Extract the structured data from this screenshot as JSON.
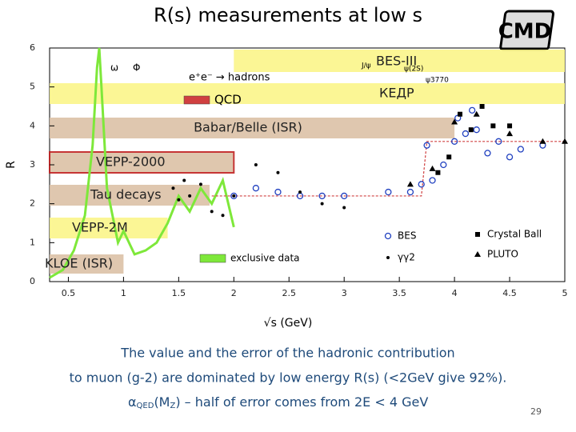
{
  "slide": {
    "title": "R(s) measurements at low s",
    "text_lines": [
      "The value and the error of the hadronic contribution",
      "to muon (g-2) are dominated by low energy R(s) (<2GeV give 92%)."
    ],
    "formula_line": [
      "α",
      "QED",
      "(M",
      "Z",
      ") – half of error comes from 2E < 4 GeV"
    ],
    "page_number": "29",
    "logo": "CMD"
  },
  "chart_data": {
    "type": "scatter",
    "xlabel": "√s   (GeV)",
    "ylabel": "R",
    "xlim": [
      0.33,
      5.0
    ],
    "ylim": [
      0,
      6
    ],
    "xticks": [
      0.5,
      1,
      1.5,
      2,
      2.5,
      3,
      3.5,
      4,
      4.5,
      5
    ],
    "yticks": [
      0,
      1,
      2,
      3,
      4,
      5,
      6
    ],
    "bands": [
      {
        "label": "BES-III",
        "x": [
          2.0,
          5.0
        ],
        "color": "#fbf58a"
      },
      {
        "label": "КЕДР",
        "x": [
          0.33,
          5.0
        ],
        "color": "#fbf58a"
      },
      {
        "label": "Babar/Belle (ISR)",
        "x": [
          0.33,
          4.0
        ],
        "color": "#dcc1a6"
      },
      {
        "label": "VEPP-2000",
        "x": [
          0.33,
          2.0
        ],
        "color": "#dcc1a6"
      },
      {
        "label": "Tau decays",
        "x": [
          0.33,
          1.78
        ],
        "color": "#dcc1a6"
      },
      {
        "label": "VEPP-2M",
        "x": [
          0.33,
          1.4
        ],
        "color": "#fbf58a"
      },
      {
        "label": "KLOE (ISR)",
        "x": [
          0.33,
          1.0
        ],
        "color": "#dcc1a6"
      }
    ],
    "annotations": [
      "ω",
      "Φ",
      "e⁺e⁻ → hadrons",
      "J/ψ",
      "ψ(2S)",
      "ψ3770"
    ],
    "series": [
      {
        "name": "exclusive data",
        "color": "#7ee83a",
        "marker": "line",
        "x": [
          0.33,
          0.45,
          0.55,
          0.65,
          0.72,
          0.76,
          0.78,
          0.8,
          0.85,
          0.95,
          1.0,
          1.1,
          1.2,
          1.3,
          1.4,
          1.5,
          1.6,
          1.7,
          1.8,
          1.9,
          2.0
        ],
        "values": [
          0.1,
          0.3,
          0.8,
          1.7,
          3.5,
          5.5,
          6.0,
          5.0,
          2.4,
          1.0,
          1.3,
          0.7,
          0.8,
          1.0,
          1.5,
          2.2,
          1.8,
          2.4,
          2.0,
          2.6,
          1.4
        ]
      },
      {
        "name": "QCD",
        "color": "#d04040",
        "marker": "dashed",
        "x": [
          1.8,
          3.7,
          3.75,
          5.0
        ],
        "values": [
          2.2,
          2.2,
          3.6,
          3.6
        ]
      },
      {
        "name": "BES",
        "color": "#2040c0",
        "marker": "circle",
        "x": [
          2.0,
          2.2,
          2.4,
          2.6,
          2.8,
          3.0,
          3.4,
          3.6,
          3.7,
          3.75,
          3.8,
          3.9,
          4.0,
          4.03,
          4.1,
          4.16,
          4.2,
          4.3,
          4.4,
          4.5,
          4.6,
          4.8
        ],
        "values": [
          2.2,
          2.4,
          2.3,
          2.2,
          2.2,
          2.2,
          2.3,
          2.3,
          2.5,
          3.5,
          2.6,
          3.0,
          3.6,
          4.2,
          3.8,
          4.4,
          3.9,
          3.3,
          3.6,
          3.2,
          3.4,
          3.5
        ]
      },
      {
        "name": "Crystal Ball",
        "color": "#000000",
        "marker": "square",
        "x": [
          3.85,
          3.95,
          4.05,
          4.15,
          4.25,
          4.35,
          4.5
        ],
        "values": [
          2.8,
          3.2,
          4.3,
          3.9,
          4.5,
          4.0,
          4.0
        ]
      },
      {
        "name": "γγ2",
        "color": "#000000",
        "marker": "dot",
        "x": [
          1.45,
          1.5,
          1.55,
          1.6,
          1.7,
          1.8,
          1.9,
          2.0,
          2.2,
          2.4,
          2.6,
          2.8,
          3.0
        ],
        "values": [
          2.4,
          2.1,
          2.6,
          2.2,
          2.5,
          1.8,
          1.7,
          2.2,
          3.0,
          2.8,
          2.3,
          2.0,
          1.9
        ]
      },
      {
        "name": "PLUTO",
        "color": "#000000",
        "marker": "triangle",
        "x": [
          3.6,
          3.8,
          4.0,
          4.2,
          4.5,
          4.8,
          5.0
        ],
        "values": [
          2.5,
          2.9,
          4.1,
          4.3,
          3.8,
          3.6,
          3.6
        ]
      }
    ]
  }
}
